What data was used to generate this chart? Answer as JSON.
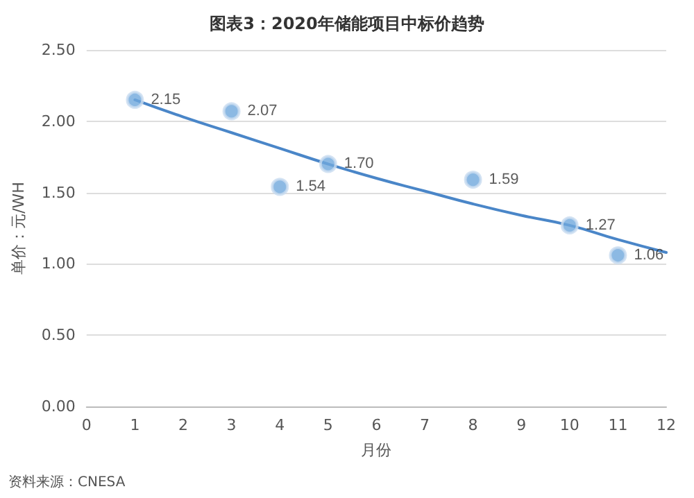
{
  "chart_data": {
    "type": "scatter",
    "title": "图表3：2020年储能项目中标价趋势",
    "xlabel": "月份",
    "ylabel": "单价：元/WH",
    "annotations": [
      "资料来源：CNESA"
    ],
    "series": [
      {
        "marker": "circle",
        "color": "#6fa8dc",
        "x": [
          1,
          3,
          4,
          5,
          8,
          10,
          11
        ],
        "values": [
          2.15,
          2.07,
          1.54,
          1.7,
          1.59,
          1.27,
          1.06
        ],
        "value_labels": [
          "2.15",
          "2.07",
          "1.54",
          "1.70",
          "1.59",
          "1.27",
          "1.06"
        ]
      },
      {
        "type": "line",
        "marker": "none",
        "color": "#4a86c8",
        "x": [
          1,
          2,
          3,
          4,
          5,
          6,
          7,
          8,
          9,
          10,
          11,
          12
        ],
        "values": [
          2.15,
          2.03,
          1.92,
          1.81,
          1.7,
          1.6,
          1.51,
          1.42,
          1.34,
          1.27,
          1.17,
          1.08
        ]
      }
    ],
    "xlim": [
      0,
      12
    ],
    "xticks": [
      0,
      1,
      2,
      3,
      4,
      5,
      6,
      7,
      8,
      9,
      10,
      11,
      12
    ],
    "ylim": [
      0,
      2.5
    ],
    "yticks": [
      {
        "value": 0,
        "label": "0.00"
      },
      {
        "value": 0.5,
        "label": "0.50"
      },
      {
        "value": 1,
        "label": "1.00"
      },
      {
        "value": 1.5,
        "label": "1.50"
      },
      {
        "value": 2,
        "label": "2.00"
      },
      {
        "value": 2.5,
        "label": "2.50"
      }
    ],
    "grid": "y",
    "line_style": "solid"
  }
}
